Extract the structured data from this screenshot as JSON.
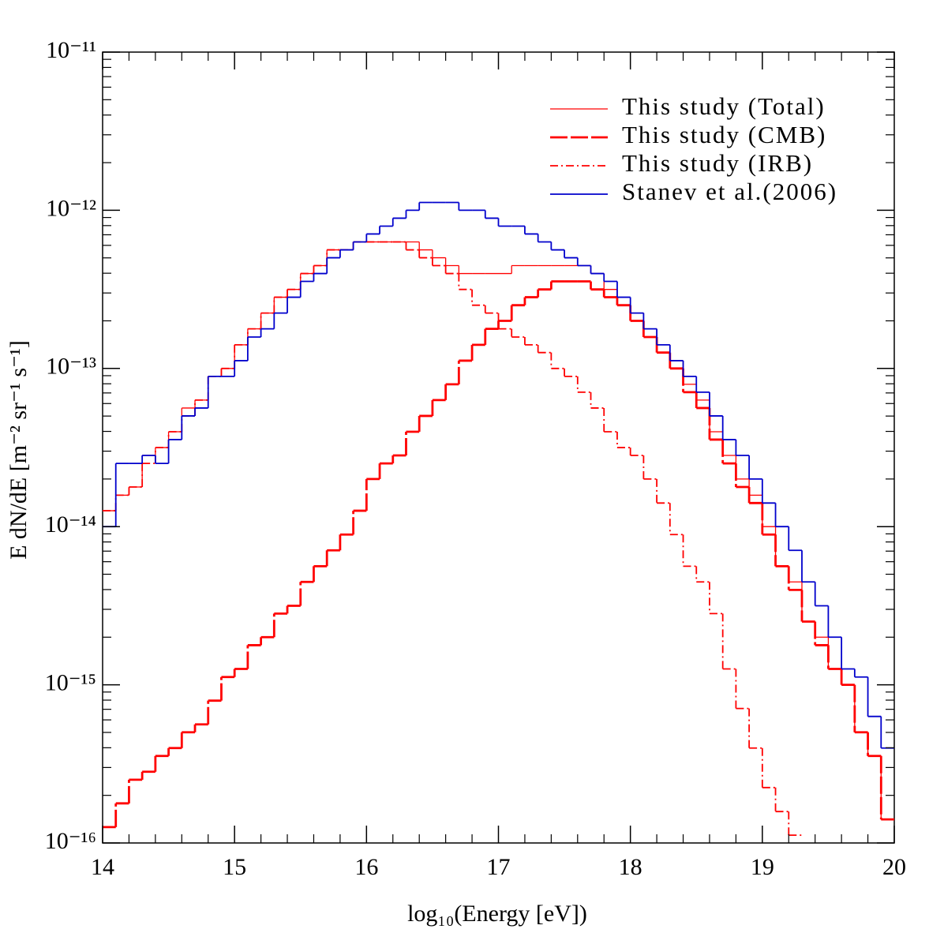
{
  "chart_data": {
    "type": "histogram",
    "xlabel": "log₁₀(Energy [eV])",
    "ylabel": "E dN/dE [m⁻² sr⁻¹ s⁻¹]",
    "log_y": true,
    "legend": "upper right",
    "xlim": [
      14,
      20
    ],
    "ylim": [
      1e-16,
      1e-11
    ],
    "xticks": [
      14,
      15,
      16,
      17,
      18,
      19,
      20
    ],
    "yticks": [
      {
        "value": 1e-16,
        "label": "10⁻¹⁶"
      },
      {
        "value": 1e-15,
        "label": "10⁻¹⁵"
      },
      {
        "value": 1e-14,
        "label": "10⁻¹⁴"
      },
      {
        "value": 1e-13,
        "label": "10⁻¹³"
      },
      {
        "value": 1e-12,
        "label": "10⁻¹²"
      },
      {
        "value": 1e-11,
        "label": "10⁻¹¹"
      }
    ],
    "bins": [
      14,
      14.1,
      14.2,
      14.3,
      14.4,
      14.5,
      14.6,
      14.7,
      14.8,
      14.9,
      15,
      15.1,
      15.2,
      15.3,
      15.4,
      15.5,
      15.6,
      15.7,
      15.8,
      15.9,
      16,
      16.1,
      16.2,
      16.3,
      16.4,
      16.5,
      16.6,
      16.7,
      16.8,
      16.9,
      17,
      17.1,
      17.2,
      17.3,
      17.4,
      17.5,
      17.6,
      17.7,
      17.8,
      17.9,
      18,
      18.1,
      18.2,
      18.3,
      18.4,
      18.5,
      18.6,
      18.7,
      18.8,
      18.9,
      19,
      19.1,
      19.2,
      19.3,
      19.4,
      19.5,
      19.6,
      19.7,
      19.8,
      19.9,
      20
    ],
    "series": [
      {
        "name": "This study (Total)",
        "color": "#ff0000",
        "linestyle": "solid",
        "values": [
          1.26e-14,
          1.58e-14,
          1.78e-14,
          2.82e-14,
          3.16e-14,
          3.98e-14,
          5.62e-14,
          6.31e-14,
          8.91e-14,
          1e-13,
          1.41e-13,
          1.78e-13,
          2.24e-13,
          2.82e-13,
          3.16e-13,
          3.98e-13,
          4.47e-13,
          5.62e-13,
          5.62e-13,
          6.31e-13,
          6.31e-13,
          6.31e-13,
          6.31e-13,
          6.31e-13,
          5.62e-13,
          5.01e-13,
          4.47e-13,
          3.98e-13,
          3.98e-13,
          3.98e-13,
          3.98e-13,
          4.47e-13,
          4.47e-13,
          4.47e-13,
          4.47e-13,
          4.47e-13,
          4.47e-13,
          3.98e-13,
          3.16e-13,
          2.51e-13,
          2.24e-13,
          1.78e-13,
          1.41e-13,
          1.12e-13,
          7.94e-14,
          6.31e-14,
          3.98e-14,
          2.82e-14,
          2e-14,
          1.58e-14,
          1e-14,
          5.62e-15,
          4.47e-15,
          2.51e-15,
          2e-15,
          1.26e-15,
          1e-15,
          5.01e-16,
          3.55e-16,
          1.41e-16
        ]
      },
      {
        "name": "This study (CMB)",
        "color": "#ff0000",
        "linestyle": "dashed",
        "values": [
          1.26e-16,
          1.78e-16,
          2.51e-16,
          2.82e-16,
          3.55e-16,
          3.98e-16,
          5.01e-16,
          5.62e-16,
          7.94e-16,
          1.12e-15,
          1.26e-15,
          1.78e-15,
          2e-15,
          2.82e-15,
          3.16e-15,
          4.47e-15,
          5.62e-15,
          7.08e-15,
          8.91e-15,
          1.26e-14,
          2e-14,
          2.51e-14,
          2.82e-14,
          3.98e-14,
          5.01e-14,
          6.31e-14,
          7.94e-14,
          1.12e-13,
          1.41e-13,
          1.78e-13,
          2e-13,
          2.51e-13,
          2.82e-13,
          3.16e-13,
          3.55e-13,
          3.55e-13,
          3.55e-13,
          3.16e-13,
          2.82e-13,
          2.51e-13,
          2e-13,
          1.58e-13,
          1.26e-13,
          1e-13,
          7.08e-14,
          5.62e-14,
          3.55e-14,
          2.51e-14,
          1.78e-14,
          1.41e-14,
          8.91e-15,
          5.62e-15,
          3.98e-15,
          2.51e-15,
          1.78e-15,
          1.26e-15,
          1e-15,
          5.01e-16,
          3.55e-16,
          1.41e-16
        ]
      },
      {
        "name": "This study (IRB)",
        "color": "#ff0000",
        "linestyle": "dashdot",
        "values": [
          1.26e-14,
          1.58e-14,
          1.78e-14,
          2.51e-14,
          3.16e-14,
          3.98e-14,
          5.01e-14,
          6.31e-14,
          8.91e-14,
          1e-13,
          1.41e-13,
          1.78e-13,
          2.24e-13,
          2.82e-13,
          3.16e-13,
          3.98e-13,
          4.47e-13,
          5.62e-13,
          5.62e-13,
          6.31e-13,
          6.31e-13,
          6.31e-13,
          6.31e-13,
          5.62e-13,
          5.01e-13,
          4.47e-13,
          3.98e-13,
          3.16e-13,
          2.51e-13,
          2.24e-13,
          1.78e-13,
          1.58e-13,
          1.41e-13,
          1.26e-13,
          1e-13,
          8.91e-14,
          7.08e-14,
          5.62e-14,
          3.98e-14,
          3.16e-14,
          2.82e-14,
          2e-14,
          1.41e-14,
          8.91e-15,
          5.62e-15,
          4.47e-15,
          2.82e-15,
          1.26e-15,
          7.08e-16,
          3.98e-16,
          2.24e-16,
          1.58e-16,
          1.12e-16,
          null,
          null,
          null,
          null,
          null,
          null,
          null
        ]
      },
      {
        "name": "Stanev et al.(2006)",
        "color": "#0000cc",
        "linestyle": "solid",
        "values": [
          1e-14,
          2.51e-14,
          2.51e-14,
          2.82e-14,
          2.51e-14,
          3.55e-14,
          5.01e-14,
          5.62e-14,
          8.91e-14,
          8.91e-14,
          1.12e-13,
          1.58e-13,
          1.78e-13,
          2.24e-13,
          2.82e-13,
          3.55e-13,
          3.98e-13,
          5.01e-13,
          5.62e-13,
          6.31e-13,
          7.08e-13,
          7.94e-13,
          8.91e-13,
          1e-12,
          1.12e-12,
          1.12e-12,
          1.12e-12,
          1e-12,
          1e-12,
          8.91e-13,
          7.94e-13,
          7.94e-13,
          7.08e-13,
          6.31e-13,
          5.62e-13,
          5.01e-13,
          4.47e-13,
          3.98e-13,
          3.55e-13,
          2.82e-13,
          2.24e-13,
          1.78e-13,
          1.41e-13,
          1.12e-13,
          8.91e-14,
          7.08e-14,
          5.01e-14,
          3.55e-14,
          2.82e-14,
          2e-14,
          1.41e-14,
          1e-14,
          7.08e-15,
          4.47e-15,
          3.16e-15,
          2e-15,
          1.26e-15,
          1.12e-15,
          6.31e-16,
          3.98e-16
        ]
      }
    ]
  }
}
